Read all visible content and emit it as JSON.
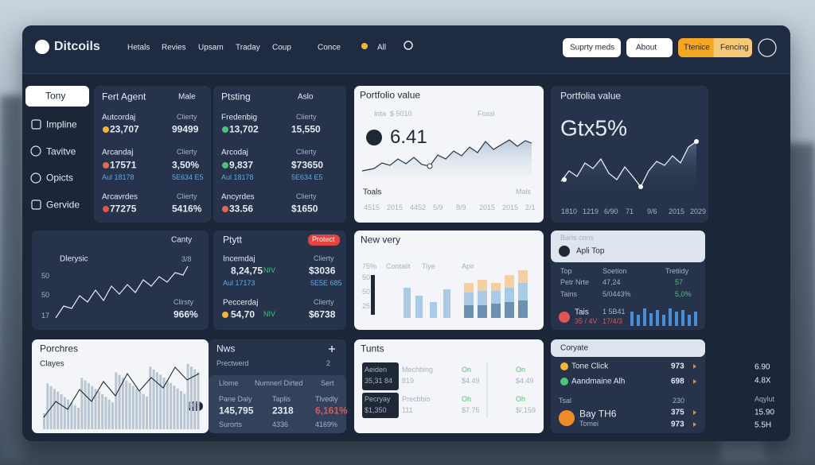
{
  "nav": {
    "brand": "Ditcoils",
    "links": [
      "Hetals",
      "Revies",
      "Upsam",
      "Traday",
      "Coup",
      "Conce"
    ],
    "alerts": "All",
    "buttons": [
      "Suprty meds",
      "About"
    ],
    "toggle": [
      "Ttenice",
      "Fencing"
    ]
  },
  "sidebar": [
    "Tony",
    "Impline",
    "Tavitve",
    "Opicts",
    "Gervide"
  ],
  "agent": {
    "title": "Fert Agent",
    "filter": "Male",
    "rows": [
      {
        "label": "Autcordaj",
        "value": "23,707",
        "side_label": "Clierty",
        "side_value": "99499"
      },
      {
        "label": "Arcandaj",
        "value": "17571",
        "side_label": "Clierty",
        "side_value": "3,50%",
        "note": "Aul 18178",
        "note_value": "5E634 E5"
      },
      {
        "label": "Arcavrdes",
        "value": "77275",
        "side_label": "Clierty",
        "side_value": "5416%"
      }
    ]
  },
  "posting": {
    "title": "Ptsting",
    "filter": "Aslo",
    "rows": [
      {
        "label": "Fredenbig",
        "value": "13,702",
        "side_label": "Clierty",
        "side_value": "15,550"
      },
      {
        "label": "Arcodaj",
        "value": "9,837",
        "side_label": "Clierty",
        "side_value": "$73650",
        "note": "Aul 18178",
        "note_value": "5E634 E5"
      },
      {
        "label": "Ancyrdes",
        "value": "33.56",
        "side_label": "Clierty",
        "side_value": "$1650"
      }
    ]
  },
  "portfolio": {
    "title": "Portfolio value",
    "chips": [
      "Inta",
      "$ 5010",
      "Fossl"
    ],
    "value": "6.41",
    "footer": "Toals",
    "legend": "Mals",
    "axis": [
      "4515",
      "2015",
      "4452",
      "5/9",
      "8/9",
      "2015",
      "2015",
      "2/1"
    ]
  },
  "portfolio_dark": {
    "title": "Portfolia value",
    "value": "Gtx5%",
    "axis": [
      "1810",
      "1219",
      "6/90",
      "71",
      "9/6",
      "2015",
      "2029"
    ]
  },
  "activity": {
    "filter": "Canty",
    "title": "Dlerysic",
    "axis": [
      "50",
      "50",
      "17"
    ],
    "badge": "3/8",
    "side_label": "Clirsty",
    "side_value": "966%"
  },
  "project": {
    "title": "Ptytt",
    "badge": "Protect",
    "rows": [
      {
        "label": "Incemdaj",
        "value": "8,24,75",
        "unit": "NIV",
        "side_label": "Clierty",
        "side_value": "$3036",
        "note": "Aul 17173",
        "note_value": "5E5E 685"
      },
      {
        "label": "Peccerdaj",
        "value": "54,70",
        "unit": "NIV",
        "side_label": "Clierty",
        "side_value": "$6738"
      }
    ]
  },
  "survey": {
    "title": "New very",
    "legend": [
      "Contalit",
      "Tiye",
      "Apir"
    ],
    "axis": [
      "75%",
      "50",
      "50",
      "25"
    ]
  },
  "bars": {
    "title": "Barls cons",
    "selector": "Apli Top",
    "header": [
      "Top",
      "Soetion",
      "Tretiidy"
    ],
    "rows": [
      [
        "Petr Nrte",
        "47,24",
        "57"
      ],
      [
        "Tains",
        "5/0443%",
        "5,0%"
      ]
    ],
    "footer": [
      "Tais",
      "1 5B41",
      "35 / 4V",
      "17/4/3"
    ]
  },
  "purchases": {
    "title": "Porchres",
    "subtitle": "Clayes",
    "badge": "DIT"
  },
  "news": {
    "title": "Nws",
    "subtitle": "Prectwerd",
    "count": "2",
    "header": [
      "Llome",
      "Numnerl Dirted",
      "Sert"
    ],
    "rows": [
      [
        "Pane Daly",
        "Taplis",
        "Tlvedly"
      ],
      [
        "145,795",
        "2318",
        "6,161%"
      ],
      [
        "Surorts",
        "4336",
        "4169%"
      ]
    ]
  },
  "tunts": {
    "title": "Tunts",
    "rows": [
      [
        "Aeiden",
        "Mechbing",
        "On",
        "On"
      ],
      [
        "35,31 84",
        "819",
        "$4.49",
        "$4.49"
      ],
      [
        "Pecryay",
        "Precbbio",
        "Oh",
        "Oh"
      ],
      [
        "$1,350",
        "111",
        "$7.75",
        "$/,159"
      ]
    ]
  },
  "corporate": {
    "title": "Coryate",
    "rows": [
      {
        "name": "Tone Click",
        "value": "973"
      },
      {
        "name": "Aandmaine Alh",
        "value": "698"
      }
    ],
    "total_label": "Tsal",
    "total_value": "230",
    "rows2": [
      {
        "name": "Bay TH6",
        "value": "375"
      },
      {
        "name": "Tomei",
        "value": "973"
      }
    ]
  },
  "backdrop": [
    "6.90",
    "4.8X",
    "Aqylut",
    "15.90",
    "5.5H"
  ]
}
